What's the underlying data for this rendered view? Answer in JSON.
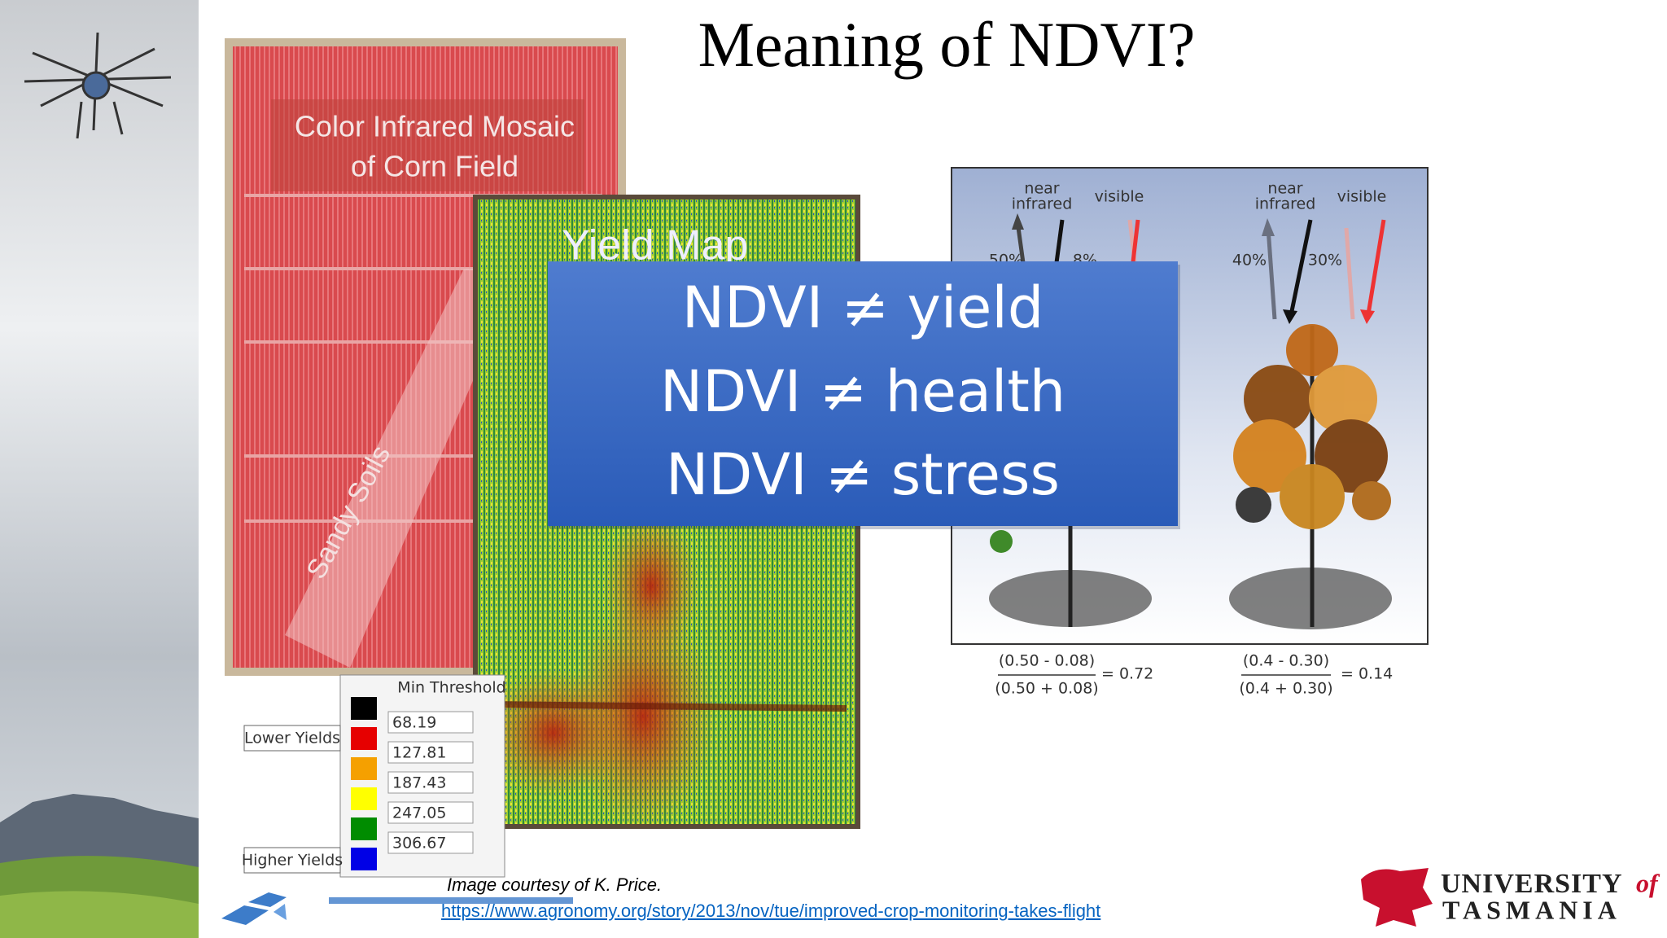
{
  "title": "Meaning of NDVI?",
  "corn_image": {
    "label": [
      "Color Infrared Mosaic",
      "of Corn Field"
    ],
    "sandy": "Sandy Soils"
  },
  "yield_map": {
    "label": "Yield Map",
    "legend": {
      "header": "Min Threshold",
      "lower": "Lower Yields",
      "higher": "Higher Yields",
      "thresholds": [
        68.19,
        127.81,
        187.43,
        247.05,
        306.67
      ]
    }
  },
  "callout": {
    "lines": [
      "NDVI ≠ yield",
      "NDVI ≠ health",
      "NDVI ≠ stress"
    ]
  },
  "reflectance": {
    "plants": [
      {
        "nir_label": [
          "near",
          "infrared"
        ],
        "visible_label": "visible",
        "nir": "50%",
        "vis": "8%",
        "numerator": "(0.50 - 0.08)",
        "denominator": "(0.50 + 0.08)",
        "result": "= 0.72"
      },
      {
        "nir_label": [
          "near",
          "infrared"
        ],
        "visible_label": "visible",
        "nir": "40%",
        "vis": "30%",
        "numerator": "(0.4 - 0.30)",
        "denominator": "(0.4 + 0.30)",
        "result": "= 0.14"
      }
    ]
  },
  "caption": "Image courtesy of K. Price.",
  "link": "https://www.agronomy.org/story/2013/nov/tue/improved-crop-monitoring-takes-flight",
  "logo": {
    "university": "UNIVERSITY",
    "of": "of",
    "tasmania": "TASMANIA"
  }
}
